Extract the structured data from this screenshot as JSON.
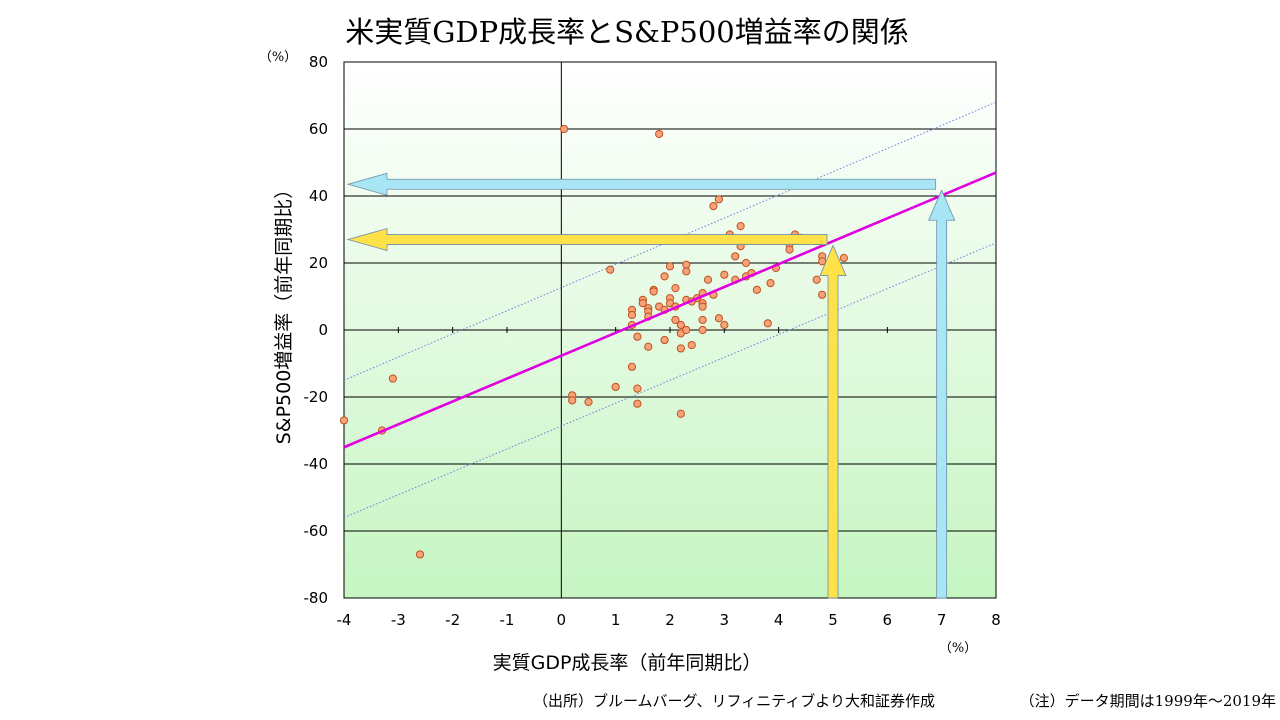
{
  "chart_data": {
    "type": "scatter",
    "title": "米実質GDP成長率とS&P500増益率の関係",
    "xlabel": "実質GDP成長率（前年同期比）",
    "ylabel": "S&P500増益率（前年同期比）",
    "x_unit": "（%）",
    "y_unit": "（%）",
    "xlim": [
      -4,
      8
    ],
    "ylim": [
      -80,
      80
    ],
    "x_ticks": [
      "-4",
      "-3",
      "-2",
      "-1",
      "0",
      "1",
      "2",
      "3",
      "4",
      "5",
      "6",
      "7",
      "8"
    ],
    "y_ticks": [
      "-80",
      "-60",
      "-40",
      "-20",
      "0",
      "20",
      "40",
      "60",
      "80"
    ],
    "grid": "horizontal",
    "points": [
      [
        -4.0,
        -27.0
      ],
      [
        -3.3,
        -30.0
      ],
      [
        -3.1,
        -14.5
      ],
      [
        -2.6,
        -67.0
      ],
      [
        0.05,
        60.0
      ],
      [
        1.8,
        58.5
      ],
      [
        0.2,
        -19.5
      ],
      [
        0.2,
        -21.0
      ],
      [
        0.5,
        -21.5
      ],
      [
        0.9,
        18.0
      ],
      [
        1.0,
        -17.0
      ],
      [
        1.3,
        6.0
      ],
      [
        1.3,
        4.5
      ],
      [
        1.3,
        1.5
      ],
      [
        1.3,
        -11.0
      ],
      [
        1.4,
        -2.0
      ],
      [
        1.4,
        -17.5
      ],
      [
        1.4,
        -22.0
      ],
      [
        1.5,
        9.0
      ],
      [
        1.5,
        8.0
      ],
      [
        1.6,
        6.5
      ],
      [
        1.6,
        5.5
      ],
      [
        1.6,
        4.0
      ],
      [
        1.6,
        -5.0
      ],
      [
        1.7,
        12.0
      ],
      [
        1.7,
        11.5
      ],
      [
        1.8,
        7.0
      ],
      [
        1.9,
        16.0
      ],
      [
        1.9,
        6.0
      ],
      [
        1.9,
        -3.0
      ],
      [
        2.0,
        19.0
      ],
      [
        2.0,
        9.5
      ],
      [
        2.0,
        8.0
      ],
      [
        2.1,
        12.5
      ],
      [
        2.1,
        7.0
      ],
      [
        2.1,
        3.0
      ],
      [
        2.2,
        1.5
      ],
      [
        2.2,
        -1.0
      ],
      [
        2.2,
        -5.5
      ],
      [
        2.2,
        -25.0
      ],
      [
        2.3,
        19.5
      ],
      [
        2.3,
        17.5
      ],
      [
        2.3,
        9.0
      ],
      [
        2.3,
        0.0
      ],
      [
        2.4,
        8.5
      ],
      [
        2.4,
        -4.5
      ],
      [
        2.5,
        9.5
      ],
      [
        2.6,
        11.0
      ],
      [
        2.6,
        8.0
      ],
      [
        2.6,
        7.0
      ],
      [
        2.6,
        3.0
      ],
      [
        2.6,
        0.0
      ],
      [
        2.7,
        15.0
      ],
      [
        2.8,
        37.0
      ],
      [
        2.8,
        10.5
      ],
      [
        2.9,
        39.0
      ],
      [
        2.9,
        3.5
      ],
      [
        3.0,
        27.0
      ],
      [
        3.0,
        16.5
      ],
      [
        3.0,
        1.5
      ],
      [
        3.1,
        28.5
      ],
      [
        3.2,
        22.0
      ],
      [
        3.2,
        15.0
      ],
      [
        3.3,
        31.0
      ],
      [
        3.3,
        25.0
      ],
      [
        3.4,
        20.0
      ],
      [
        3.4,
        16.0
      ],
      [
        3.5,
        17.0
      ],
      [
        3.6,
        12.0
      ],
      [
        3.8,
        2.0
      ],
      [
        3.85,
        14.0
      ],
      [
        3.95,
        18.5
      ],
      [
        4.2,
        25.5
      ],
      [
        4.2,
        24.0
      ],
      [
        4.3,
        28.5
      ],
      [
        4.4,
        27.5
      ],
      [
        4.7,
        15.0
      ],
      [
        4.8,
        22.0
      ],
      [
        4.8,
        20.5
      ],
      [
        4.8,
        10.5
      ],
      [
        5.2,
        21.5
      ]
    ],
    "regression_line": {
      "from": [
        -4,
        -35
      ],
      "to": [
        8,
        47
      ]
    },
    "band_upper": {
      "from": [
        -4,
        -15
      ],
      "to": [
        8,
        68
      ]
    },
    "band_lower": {
      "from": [
        -4,
        -56
      ],
      "to": [
        8,
        26
      ]
    },
    "arrows": [
      {
        "name": "yellow",
        "x": 5,
        "y": 27,
        "color": "#ffe24a"
      },
      {
        "name": "cyan",
        "x": 7,
        "y": 43.5,
        "color": "#a8e6f5"
      }
    ],
    "colors": {
      "point_fill": "#f7a37a",
      "point_stroke": "#c0501e",
      "regression": "#e000e0",
      "band": "#6d7fd8",
      "plot_top": "#ffffff",
      "plot_bottom": "#c6f5c2"
    }
  },
  "footer": {
    "source": "（出所）ブルームバーグ、リフィニティブより大和証券作成",
    "note": "（注）データ期間は1999年～2019年"
  }
}
